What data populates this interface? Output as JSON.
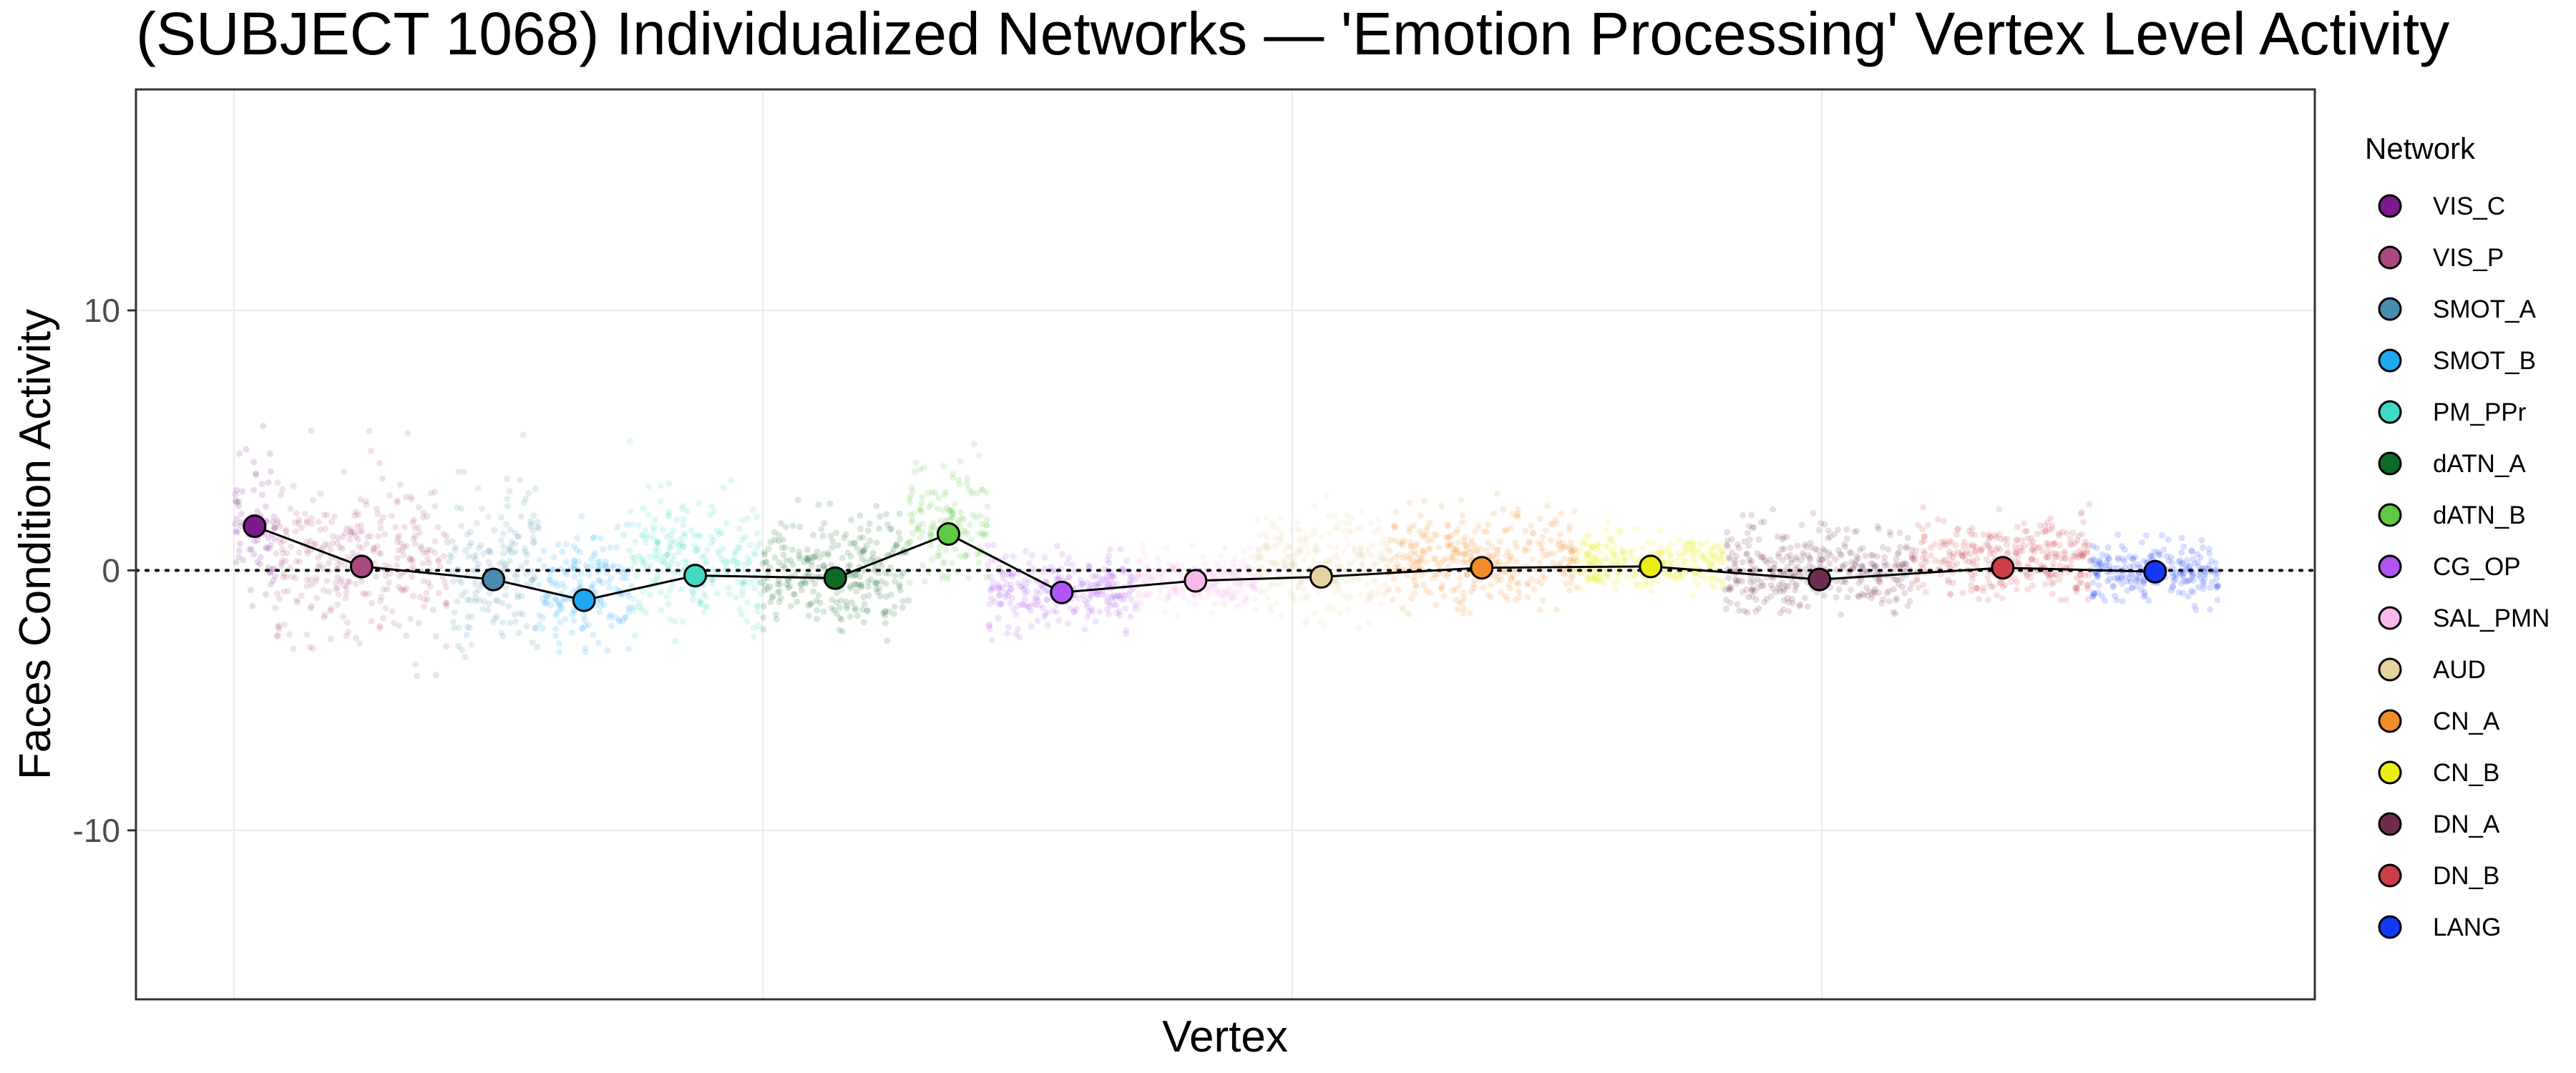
{
  "chart_data": {
    "type": "scatter",
    "title": "(SUBJECT 1068) Individualized Networks — 'Emotion Processing' Vertex Level Activity",
    "xlabel": "Vertex",
    "ylabel": "Faces Condition Activity",
    "ylim": [
      -16.5,
      18.5
    ],
    "yticks": [
      -10,
      0,
      10
    ],
    "reference_line_y": 0,
    "grid": true,
    "legend": {
      "title": "Network",
      "placement": "right"
    },
    "series": [
      {
        "name": "VIS_C",
        "color": "#7b1a8c",
        "mean": 1.7,
        "range": [
          -3,
          6.5
        ]
      },
      {
        "name": "VIS_P",
        "color": "#a8487f",
        "mean": 0.15,
        "range": [
          -4.5,
          5.5
        ]
      },
      {
        "name": "SMOT_A",
        "color": "#4a8cad",
        "mean": -0.35,
        "range": [
          -4,
          6
        ]
      },
      {
        "name": "SMOT_B",
        "color": "#1eaaf0",
        "mean": -1.15,
        "range": [
          -3.2,
          4
        ]
      },
      {
        "name": "PM_PPr",
        "color": "#3fd9c4",
        "mean": -0.2,
        "range": [
          -2.8,
          5.2
        ]
      },
      {
        "name": "dATN_A",
        "color": "#0e6a25",
        "mean": -0.3,
        "range": [
          -2.8,
          3.5
        ]
      },
      {
        "name": "dATN_B",
        "color": "#5ec941",
        "mean": 1.4,
        "range": [
          -0.5,
          6
        ]
      },
      {
        "name": "CG_OP",
        "color": "#b155f2",
        "mean": -0.85,
        "range": [
          -3,
          1.5
        ]
      },
      {
        "name": "SAL_PMN",
        "color": "#f8b8ea",
        "mean": -0.4,
        "range": [
          -2,
          1.2
        ]
      },
      {
        "name": "AUD",
        "color": "#e8d2a0",
        "mean": -0.25,
        "range": [
          -2.2,
          4.5
        ]
      },
      {
        "name": "CN_A",
        "color": "#f08d2a",
        "mean": 0.1,
        "range": [
          -1.8,
          4.2
        ]
      },
      {
        "name": "CN_B",
        "color": "#ecec17",
        "mean": 0.15,
        "range": [
          -1.2,
          2.2
        ]
      },
      {
        "name": "DN_A",
        "color": "#6e2d4f",
        "mean": -0.35,
        "range": [
          -1.8,
          3.5
        ]
      },
      {
        "name": "DN_B",
        "color": "#cc3e48",
        "mean": 0.1,
        "range": [
          -1.2,
          3.8
        ]
      },
      {
        "name": "LANG",
        "color": "#1339f6",
        "mean": -0.05,
        "range": [
          -1.8,
          1.5
        ]
      }
    ]
  }
}
